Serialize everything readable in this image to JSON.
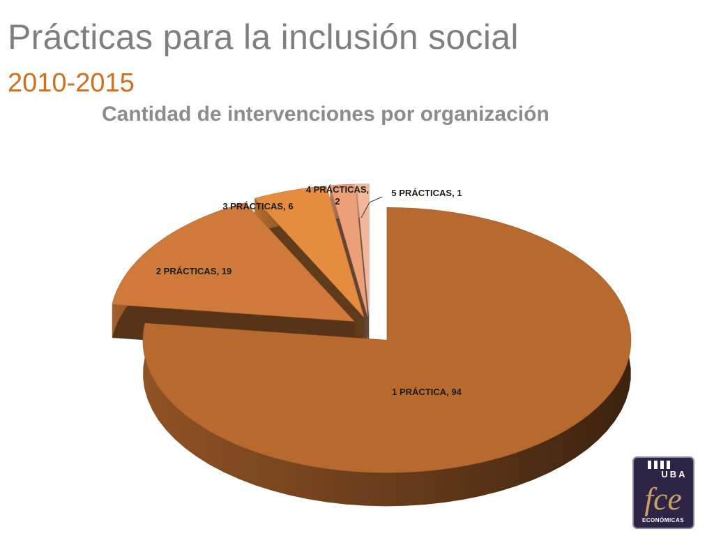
{
  "slide": {
    "title": "Prácticas para la inclusión social",
    "subtitle": "2010-2015"
  },
  "chart_data": {
    "type": "pie",
    "title": "Cantidad de intervenciones por organización",
    "categories": [
      "1 PRÁCTICA",
      "2 PRÁCTICAS",
      "3 PRÁCTICAS",
      "4 PRÁCTICAS",
      "5 PRÁCTICAS"
    ],
    "values": [
      94,
      19,
      6,
      2,
      1
    ],
    "labels": [
      "1 PRÁCTICA, 94",
      "2 PRÁCTICAS, 19",
      "3 PRÁCTICAS, 6",
      "4 PRÁCTICAS, 2",
      "5 PRÁCTICAS, 1"
    ],
    "colors": [
      "#b7692e",
      "#cf7a3a",
      "#e58c3f",
      "#eca078",
      "#f2b79a"
    ],
    "exploded": true,
    "style": "3d"
  },
  "logo": {
    "top": "UBA",
    "main": "fce",
    "bottom": "ECONÓMICAS",
    "colors": {
      "background": "#2d2446",
      "accent": "#c8a064"
    }
  }
}
